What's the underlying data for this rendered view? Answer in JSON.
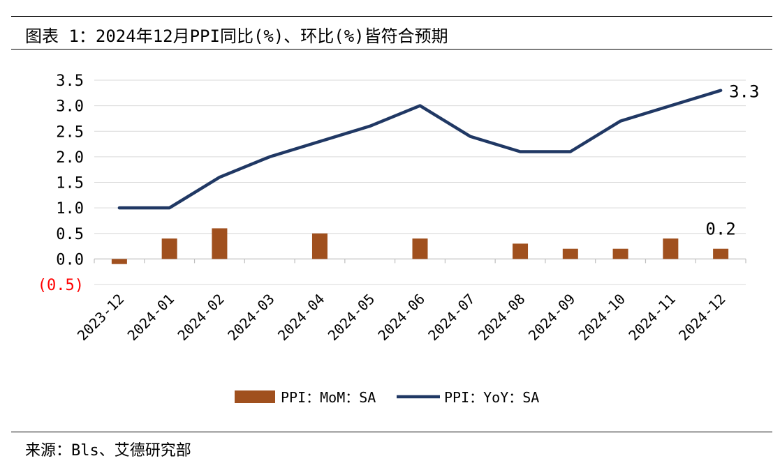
{
  "figure": {
    "title": "图表 1：2024年12月PPI同比(%)、环比(%)皆符合预期",
    "source": "来源：Bls、艾德研究部"
  },
  "chart_data": {
    "type": "bar+line",
    "categories": [
      "2023-12",
      "2024-01",
      "2024-02",
      "2024-03",
      "2024-04",
      "2024-05",
      "2024-06",
      "2024-07",
      "2024-08",
      "2024-09",
      "2024-10",
      "2024-11",
      "2024-12"
    ],
    "series": [
      {
        "name": "PPI：MoM：SA",
        "type": "bar",
        "color": "#A0501E",
        "values": [
          -0.1,
          0.4,
          0.6,
          0.0,
          0.5,
          0.0,
          0.4,
          0.0,
          0.3,
          0.2,
          0.2,
          0.4,
          0.2
        ]
      },
      {
        "name": "PPI：YoY：SA",
        "type": "line",
        "color": "#203864",
        "values": [
          1.0,
          1.0,
          1.6,
          2.0,
          2.3,
          2.6,
          3.0,
          2.4,
          2.1,
          2.1,
          2.7,
          3.0,
          3.3
        ]
      }
    ],
    "ylim": [
      -0.5,
      3.5
    ],
    "yticks": [
      -0.5,
      0.0,
      0.5,
      1.0,
      1.5,
      2.0,
      2.5,
      3.0,
      3.5
    ],
    "ytick_labels": [
      "(0.5)",
      "0.0",
      "0.5",
      "1.0",
      "1.5",
      "2.0",
      "2.5",
      "3.0",
      "3.5"
    ],
    "negative_label_color": "#FF0000",
    "grid": true,
    "annotations": [
      {
        "series": "PPI：YoY：SA",
        "index": 12,
        "text": "3.3"
      },
      {
        "series": "PPI：MoM：SA",
        "index": 12,
        "text": "0.2"
      }
    ],
    "legend_position": "bottom"
  }
}
